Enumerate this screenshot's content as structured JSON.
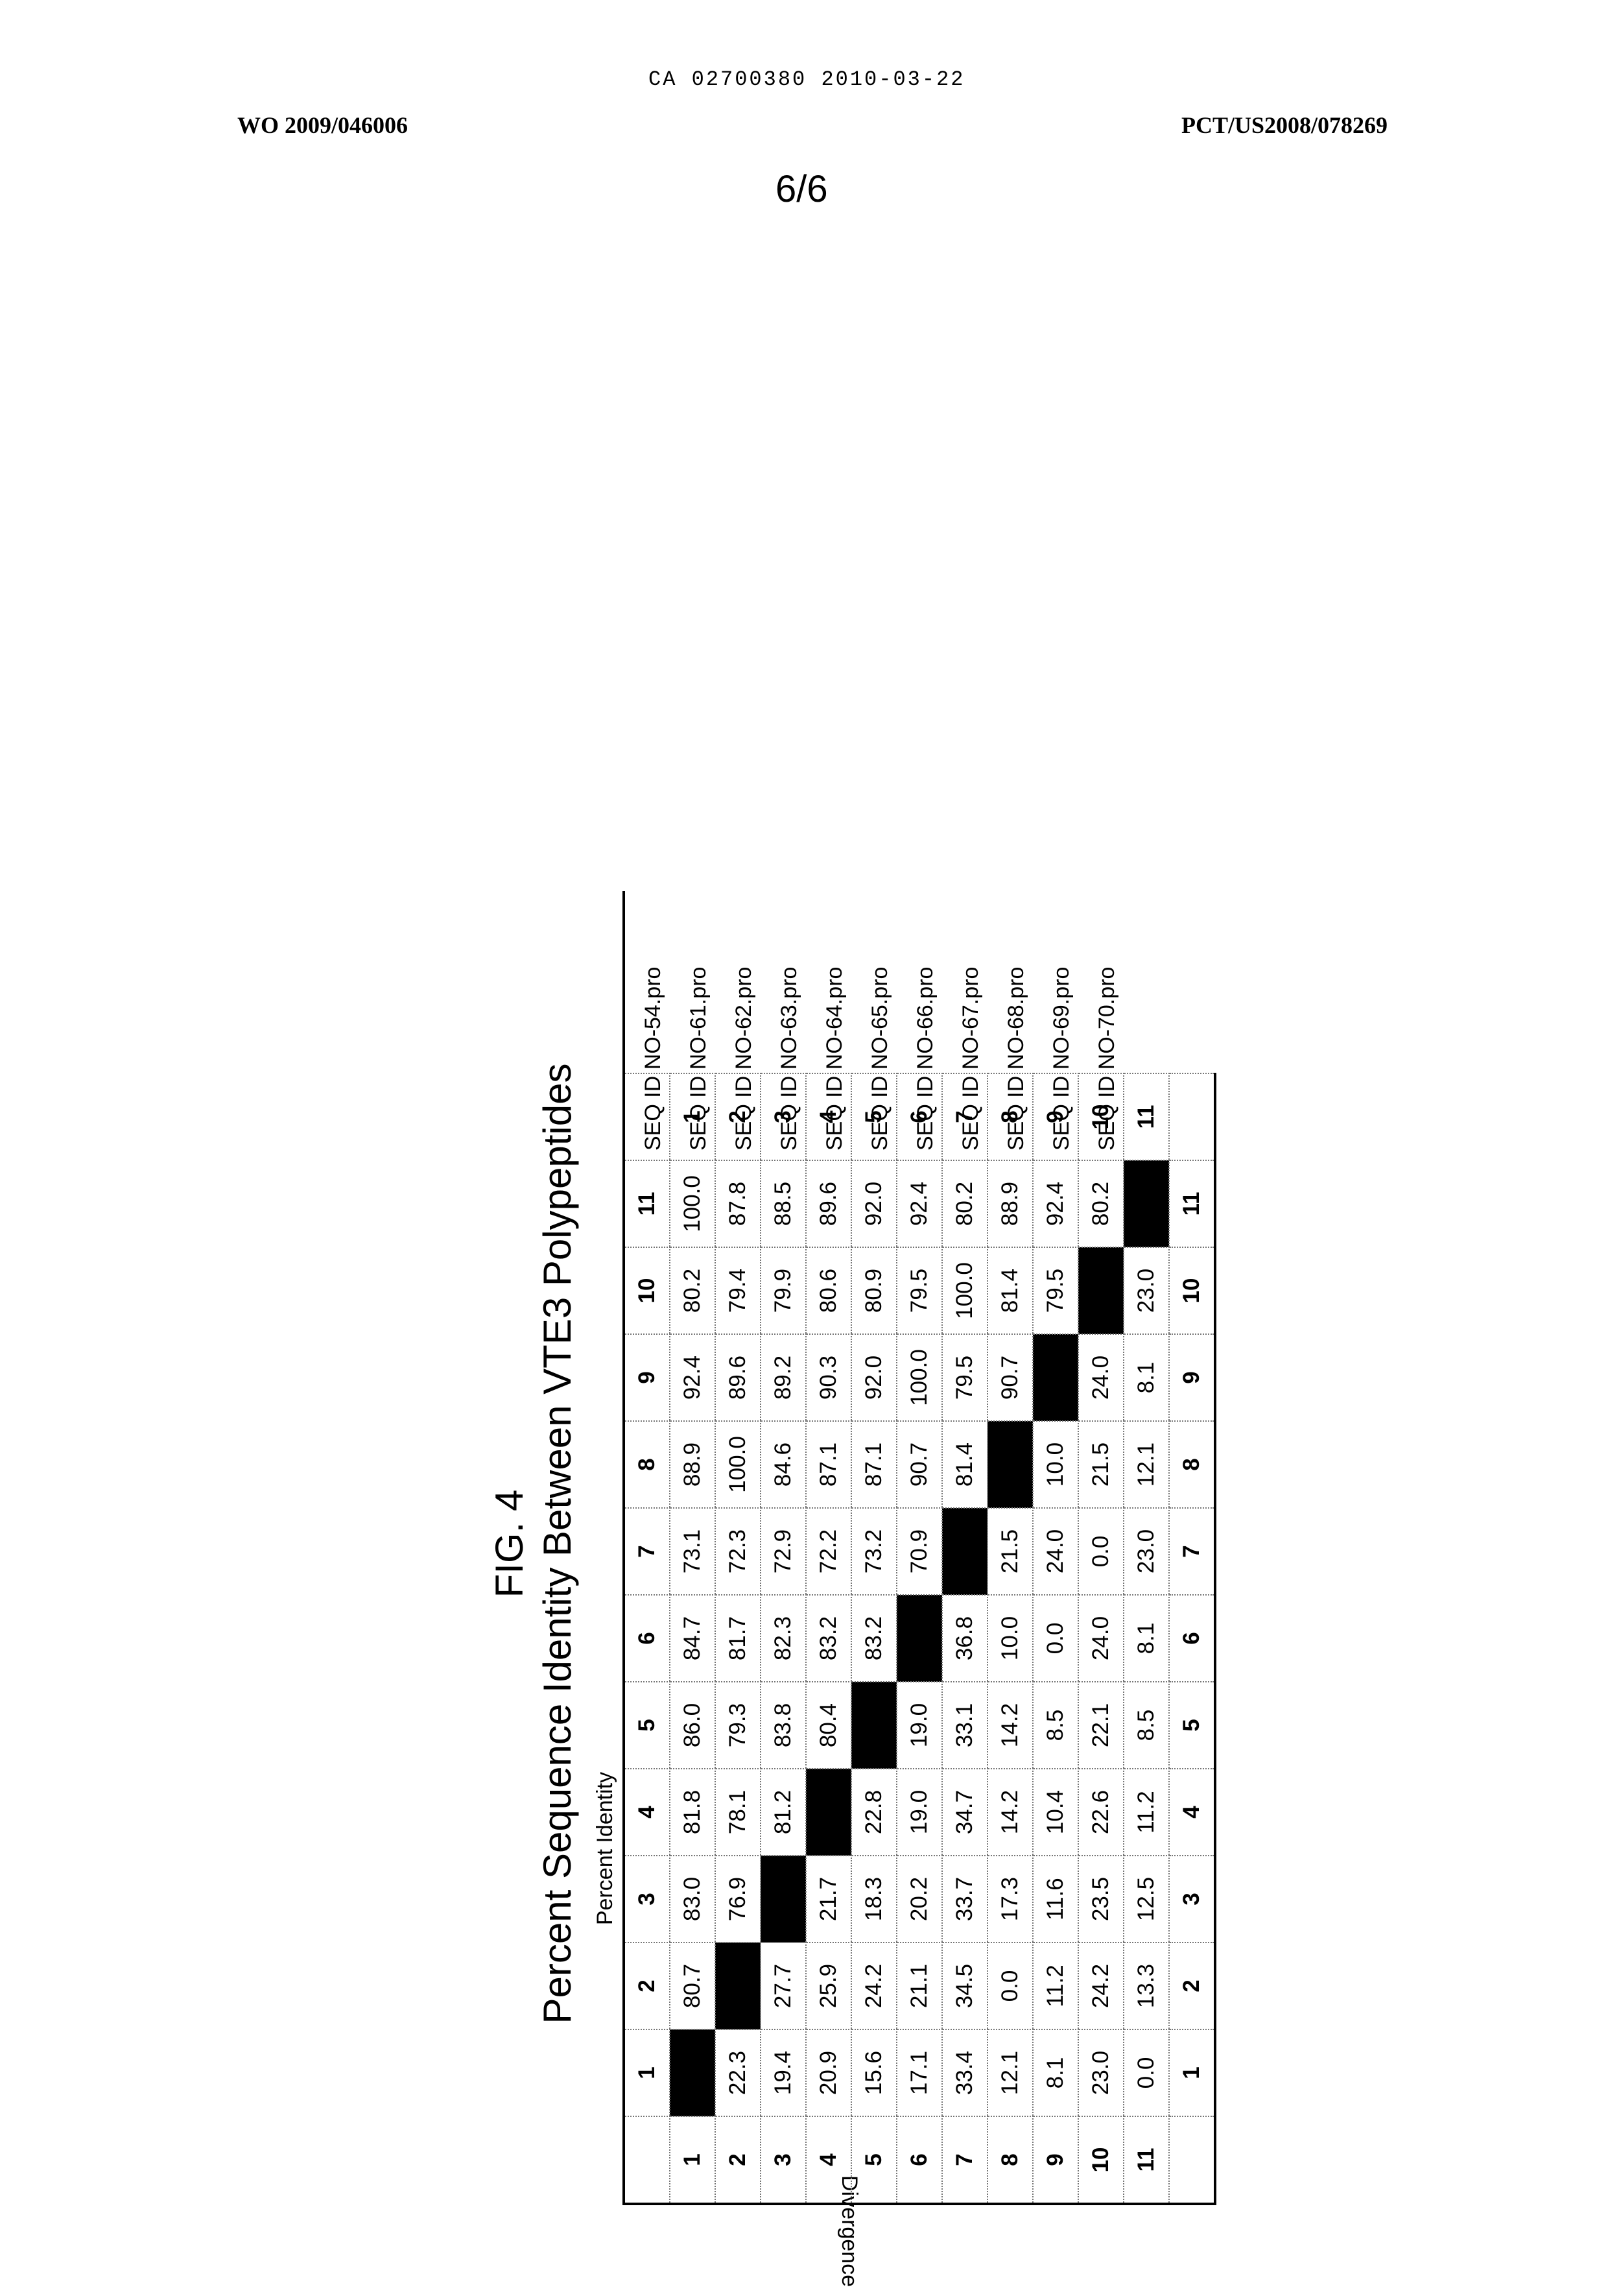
{
  "header": {
    "ca_number": "CA 02700380 2010-03-22",
    "pub_left": "WO 2009/046006",
    "pub_right": "PCT/US2008/078269",
    "page": "6/6"
  },
  "figure": {
    "label": "FIG. 4",
    "title": "Percent Sequence Identity Between VTE3 Polypeptides",
    "percent_identity_label": "Percent Identity",
    "divergence_label": "Divergence"
  },
  "matrix": {
    "headers": [
      "1",
      "2",
      "3",
      "4",
      "5",
      "6",
      "7",
      "8",
      "9",
      "10",
      "11"
    ],
    "rows": [
      [
        "",
        "80.7",
        "83.0",
        "81.8",
        "86.0",
        "84.7",
        "73.1",
        "88.9",
        "92.4",
        "80.2",
        "100.0"
      ],
      [
        "22.3",
        "",
        "76.9",
        "78.1",
        "79.3",
        "81.7",
        "72.3",
        "100.0",
        "89.6",
        "79.4",
        "87.8"
      ],
      [
        "19.4",
        "27.7",
        "",
        "81.2",
        "83.8",
        "82.3",
        "72.9",
        "84.6",
        "89.2",
        "79.9",
        "88.5"
      ],
      [
        "20.9",
        "25.9",
        "21.7",
        "",
        "80.4",
        "83.2",
        "72.2",
        "87.1",
        "90.3",
        "80.6",
        "89.6"
      ],
      [
        "15.6",
        "24.2",
        "18.3",
        "22.8",
        "",
        "83.2",
        "73.2",
        "87.1",
        "92.0",
        "80.9",
        "92.0"
      ],
      [
        "17.1",
        "21.1",
        "20.2",
        "19.0",
        "19.0",
        "",
        "70.9",
        "90.7",
        "100.0",
        "79.5",
        "92.4"
      ],
      [
        "33.4",
        "34.5",
        "33.7",
        "34.7",
        "33.1",
        "36.8",
        "",
        "81.4",
        "79.5",
        "100.0",
        "80.2"
      ],
      [
        "12.1",
        "0.0",
        "17.3",
        "14.2",
        "14.2",
        "10.0",
        "21.5",
        "",
        "90.7",
        "81.4",
        "88.9"
      ],
      [
        "8.1",
        "11.2",
        "11.6",
        "10.4",
        "8.5",
        "0.0",
        "24.0",
        "10.0",
        "",
        "79.5",
        "92.4"
      ],
      [
        "23.0",
        "24.2",
        "23.5",
        "22.6",
        "22.1",
        "24.0",
        "0.0",
        "21.5",
        "24.0",
        "",
        "80.2"
      ],
      [
        "0.0",
        "13.3",
        "12.5",
        "11.2",
        "8.5",
        "8.1",
        "23.0",
        "12.1",
        "8.1",
        "23.0",
        ""
      ]
    ],
    "sequences": [
      "SEQ ID NO-54.pro",
      "SEQ ID NO-61.pro",
      "SEQ ID NO-62.pro",
      "SEQ ID NO-63.pro",
      "SEQ ID NO-64.pro",
      "SEQ ID NO-65.pro",
      "SEQ ID NO-66.pro",
      "SEQ ID NO-67.pro",
      "SEQ ID NO-68.pro",
      "SEQ ID NO-69.pro",
      "SEQ ID NO-70.pro"
    ]
  }
}
